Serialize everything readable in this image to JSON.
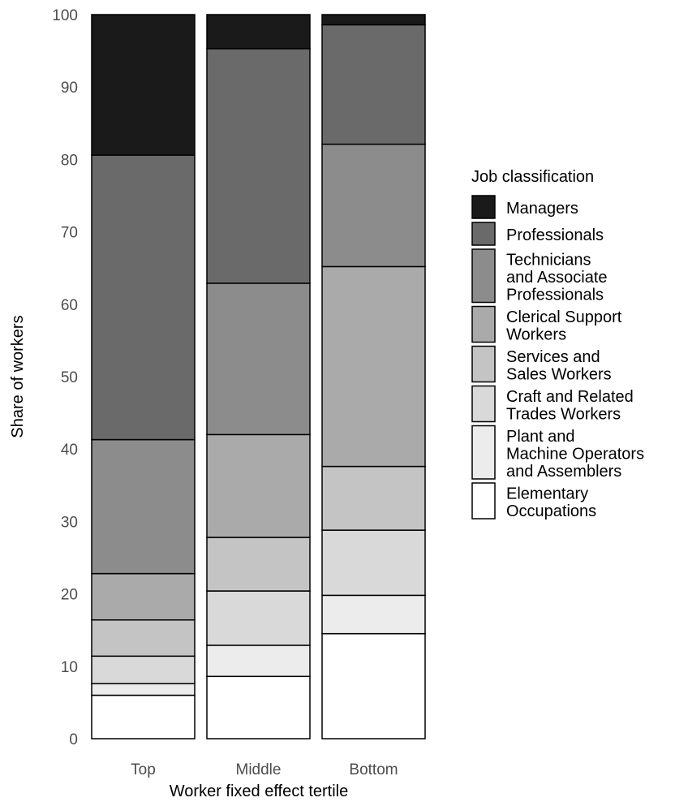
{
  "chart_data": {
    "type": "bar",
    "stacked": true,
    "xlabel": "Worker fixed effect tertile",
    "ylabel": "Share of workers",
    "ylim": [
      0,
      100
    ],
    "yticks": [
      0,
      10,
      20,
      30,
      40,
      50,
      60,
      70,
      80,
      90,
      100
    ],
    "categories": [
      "Top",
      "Middle",
      "Bottom"
    ],
    "legend_title": "Job classification",
    "legend_position": "right",
    "grid": false,
    "series": [
      {
        "name": "Elementary Occupations",
        "label_lines": [
          "Elementary",
          "Occupations"
        ],
        "color": "#ffffff",
        "values": [
          6.0,
          8.6,
          14.5
        ]
      },
      {
        "name": "Plant and Machine Operators and Assemblers",
        "label_lines": [
          "Plant and",
          "Machine Operators",
          "and Assemblers"
        ],
        "color": "#ececec",
        "values": [
          1.6,
          4.3,
          5.3
        ]
      },
      {
        "name": "Craft and Related Trades Workers",
        "label_lines": [
          "Craft and Related",
          "Trades Workers"
        ],
        "color": "#d9d9d9",
        "values": [
          3.8,
          7.5,
          9.0
        ]
      },
      {
        "name": "Services and Sales Workers",
        "label_lines": [
          "Services and",
          "Sales Workers"
        ],
        "color": "#c4c4c4",
        "values": [
          5.0,
          7.4,
          8.8
        ]
      },
      {
        "name": "Clerical Support Workers",
        "label_lines": [
          "Clerical Support",
          "Workers"
        ],
        "color": "#aaaaaa",
        "values": [
          6.4,
          14.2,
          27.6
        ]
      },
      {
        "name": "Technicians and Associate Professionals",
        "label_lines": [
          "Technicians",
          "and Associate",
          "Professionals"
        ],
        "color": "#8c8c8c",
        "values": [
          18.5,
          20.9,
          16.9
        ]
      },
      {
        "name": "Professionals",
        "label_lines": [
          "Professionals"
        ],
        "color": "#6a6a6a",
        "values": [
          39.3,
          32.4,
          16.5
        ]
      },
      {
        "name": "Managers",
        "label_lines": [
          "Managers"
        ],
        "color": "#1a1a1a",
        "values": [
          19.4,
          4.7,
          1.4
        ]
      }
    ]
  }
}
